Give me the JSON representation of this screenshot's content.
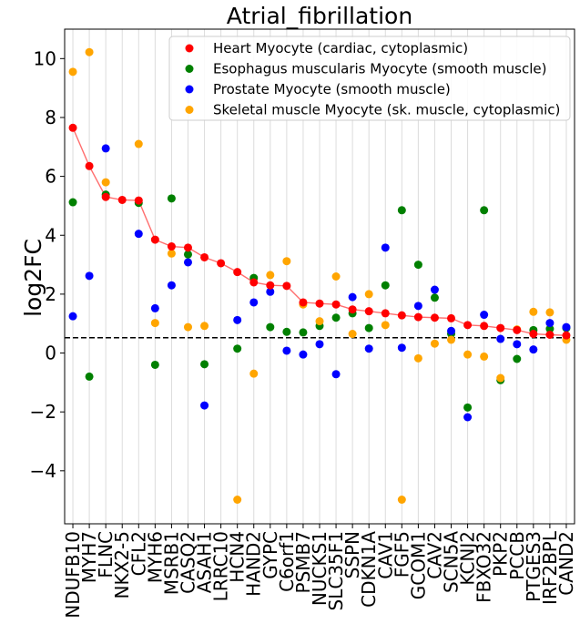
{
  "chart_data": {
    "type": "scatter",
    "title": "Atrial_fibrillation",
    "xlabel": "",
    "ylabel": "log2FC",
    "ylim": [
      -5.8,
      11.0
    ],
    "yticks": [
      -4,
      -2,
      0,
      2,
      4,
      6,
      8,
      10
    ],
    "ytick_labels": [
      "−4",
      "−2",
      "0",
      "2",
      "4",
      "6",
      "8",
      "10"
    ],
    "reference_line": 0.52,
    "vertical_grid": true,
    "legend_position": "top-right",
    "categories": [
      "NDUFB10",
      "MYH7",
      "FLNC",
      "NKX2-5",
      "CFL2",
      "MYH6",
      "MSRB1",
      "CASQ2",
      "ASAH1",
      "LRRC10",
      "HCN4",
      "HAND2",
      "GYPC",
      "C6orf1",
      "PSMB7",
      "NUCKS1",
      "SLC35F1",
      "SSPN",
      "CDKN1A",
      "CAV1",
      "FGF5",
      "GCOM1",
      "CAV2",
      "SCN5A",
      "KCNJ2",
      "FBXO32",
      "PKP2",
      "PCCB",
      "PTGES3",
      "IRF2BPL",
      "CAND2"
    ],
    "series": [
      {
        "name": "Heart Myocyte (cardiac, cytoplasmic)",
        "color": "#ff0000",
        "values": [
          7.65,
          6.35,
          5.3,
          5.2,
          5.18,
          3.85,
          3.62,
          3.58,
          3.25,
          3.05,
          2.75,
          2.4,
          2.3,
          2.28,
          1.72,
          1.68,
          1.65,
          1.48,
          1.42,
          1.35,
          1.28,
          1.22,
          1.2,
          1.18,
          0.95,
          0.92,
          0.85,
          0.78,
          0.65,
          0.62,
          0.6
        ],
        "line": true
      },
      {
        "name": "Esophagus muscularis Myocyte (smooth muscle)",
        "color": "#008000",
        "values": [
          5.12,
          -0.8,
          5.38,
          null,
          5.1,
          -0.4,
          5.25,
          3.35,
          -0.38,
          null,
          0.15,
          2.55,
          0.88,
          0.72,
          0.7,
          0.92,
          1.2,
          1.35,
          0.85,
          2.3,
          4.85,
          3.0,
          1.88,
          0.65,
          -1.85,
          4.85,
          -0.92,
          -0.2,
          0.78,
          0.82,
          0.85
        ]
      },
      {
        "name": "Prostate Myocyte (smooth muscle)",
        "color": "#0000ff",
        "values": [
          1.25,
          2.62,
          6.95,
          null,
          4.05,
          1.52,
          2.3,
          3.08,
          -1.78,
          null,
          1.12,
          1.72,
          2.08,
          0.08,
          -0.05,
          0.3,
          -0.72,
          1.9,
          0.15,
          3.58,
          0.18,
          1.6,
          2.15,
          0.75,
          -2.18,
          1.3,
          0.48,
          0.3,
          0.12,
          1.02,
          0.88
        ]
      },
      {
        "name": "Skeletal muscle Myocyte (sk. muscle, cytoplasmic)",
        "color": "#ffa500",
        "values": [
          9.55,
          10.22,
          5.8,
          null,
          7.1,
          1.02,
          3.38,
          0.88,
          0.92,
          null,
          -4.98,
          -0.7,
          2.65,
          3.12,
          1.65,
          1.08,
          2.6,
          0.65,
          2.0,
          0.95,
          -4.98,
          -0.18,
          0.32,
          0.45,
          -0.05,
          -0.12,
          -0.85,
          0.8,
          1.4,
          1.38,
          0.45
        ]
      }
    ]
  }
}
